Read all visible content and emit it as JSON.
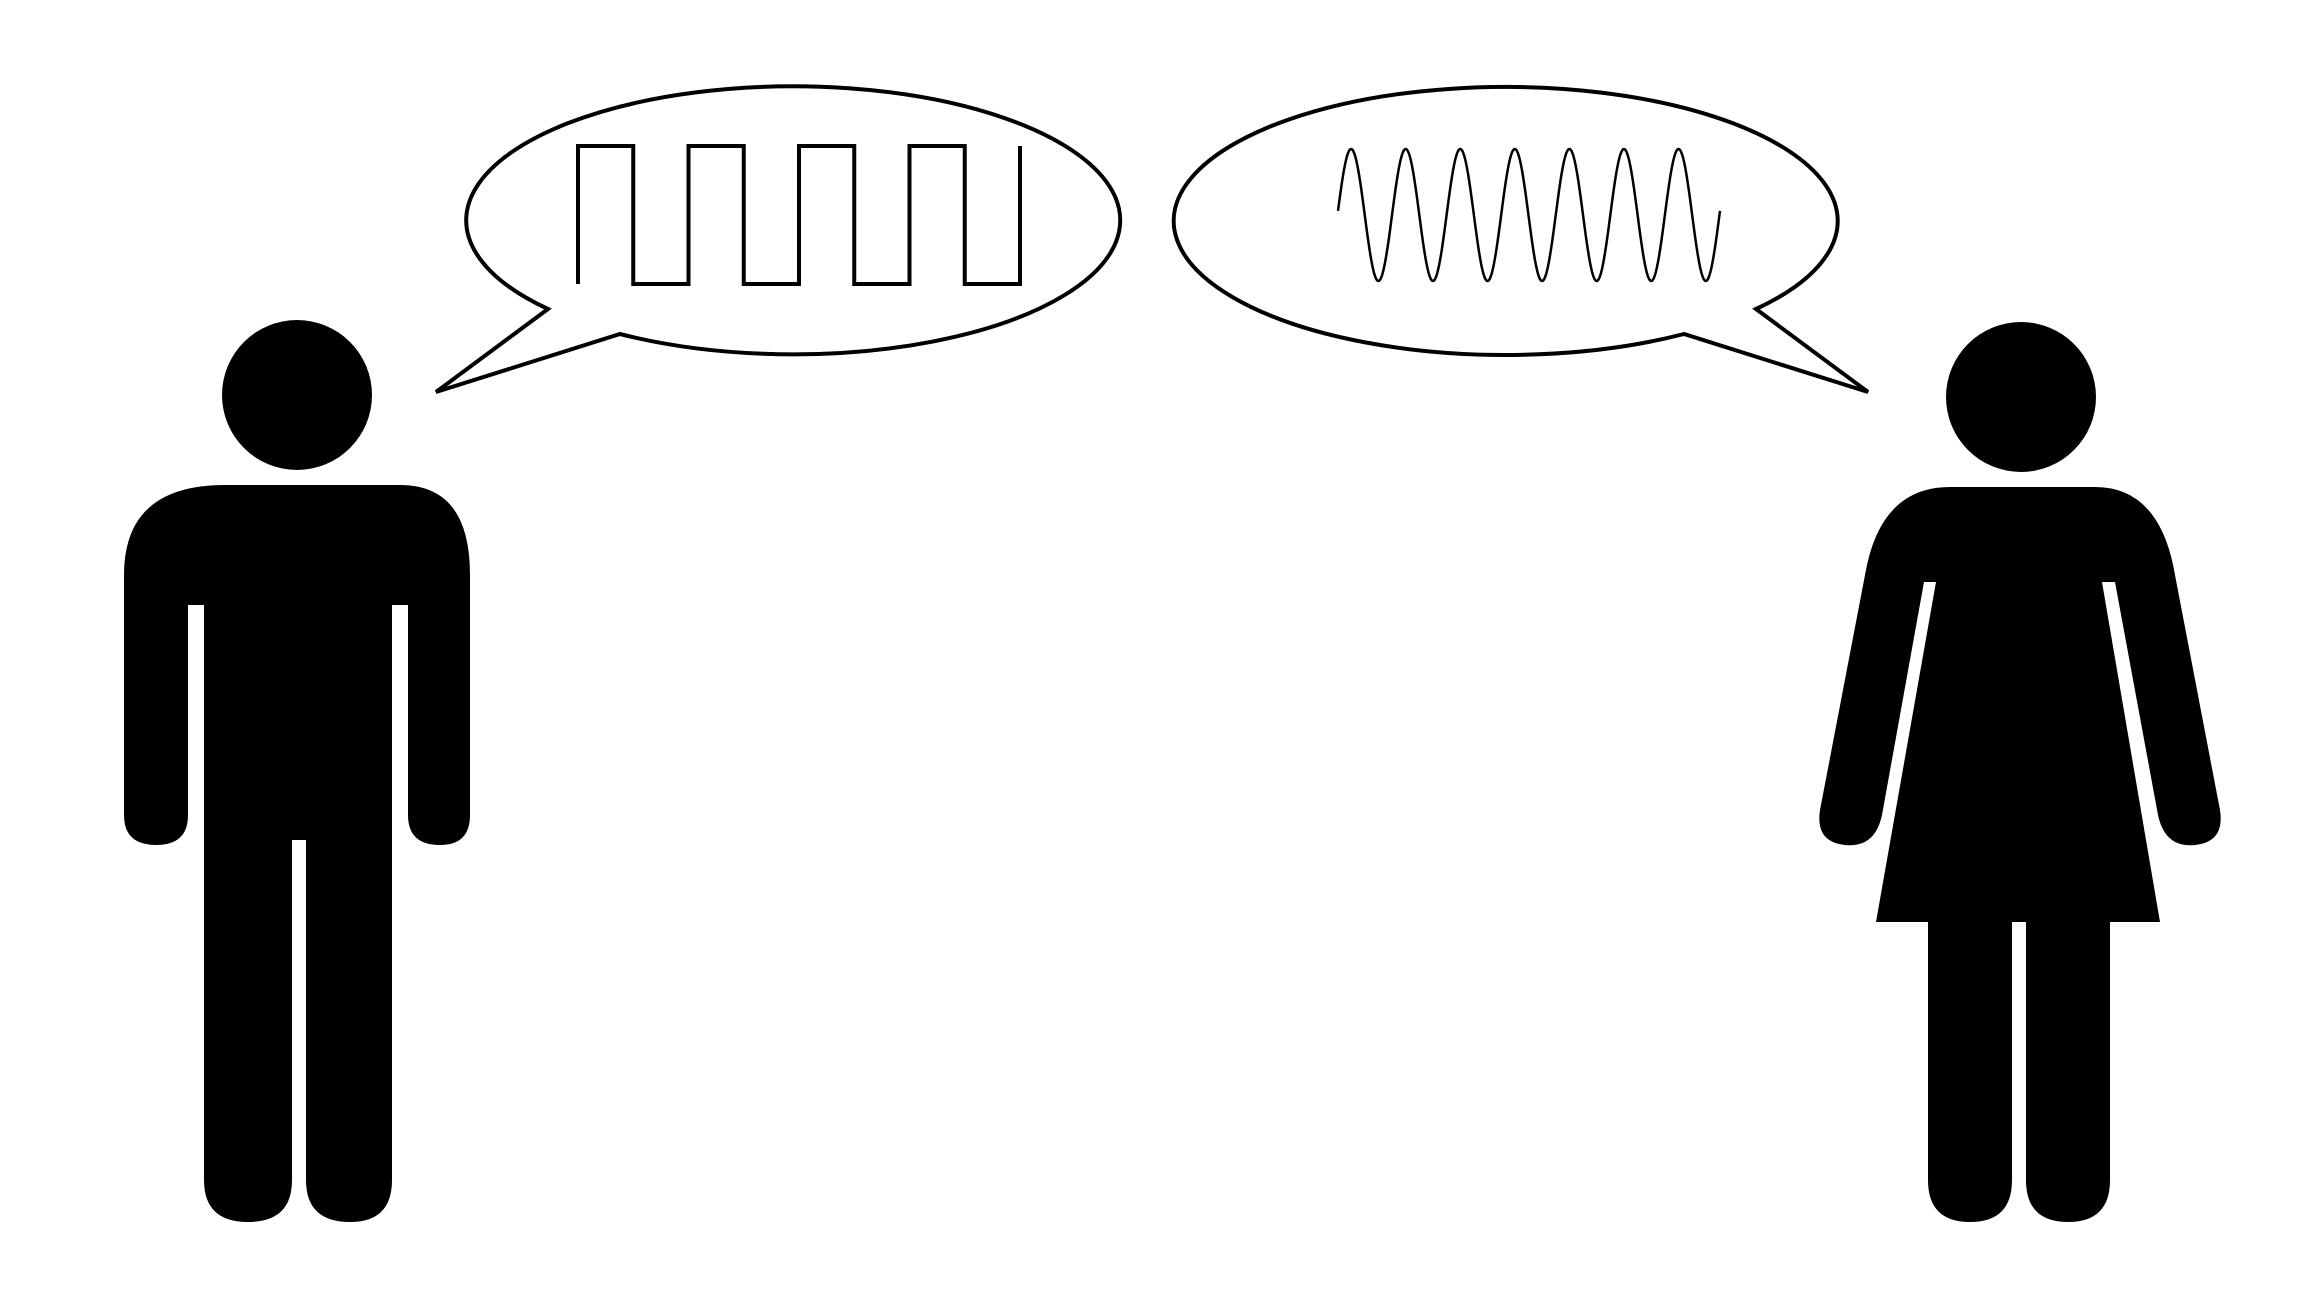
{
  "colors": {
    "background": "#ffffff",
    "figure": "#000000",
    "bubble_fill": "#ffffff",
    "bubble_stroke": "#000000",
    "wave_stroke": "#000000"
  },
  "left_person": {
    "icon": "man-icon",
    "speech": {
      "icon": "square-wave-icon",
      "waveform": "square",
      "cycles": 4
    }
  },
  "right_person": {
    "icon": "woman-icon",
    "speech": {
      "icon": "sine-wave-icon",
      "waveform": "sine",
      "cycles": 7
    }
  }
}
